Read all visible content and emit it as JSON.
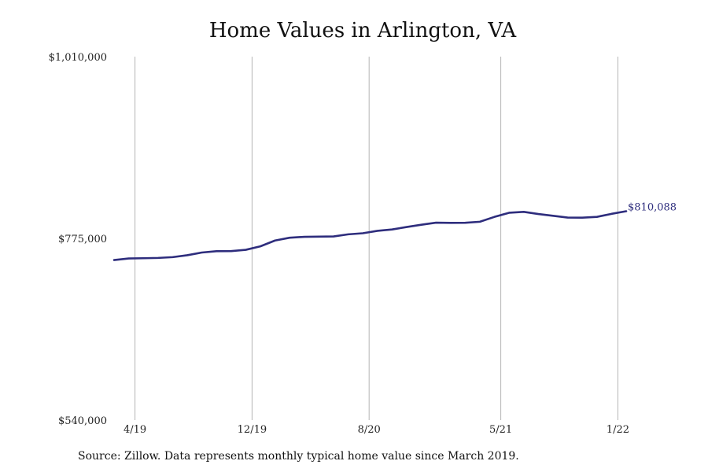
{
  "chart_data": {
    "type": "line",
    "title": "Home Values in Arlington, VA",
    "xlabel": "",
    "ylabel": "",
    "ylim": [
      540000,
      1010000
    ],
    "y_ticks": [
      "$1,010,000",
      "$775,000",
      "$540,000"
    ],
    "y_tick_values": [
      1010000,
      775000,
      540000
    ],
    "x_ticks": [
      "4/19",
      "12/19",
      "8/20",
      "5/21",
      "1/22"
    ],
    "x_tick_dates": [
      "2019-04",
      "2019-12",
      "2020-08",
      "2021-05",
      "2022-01"
    ],
    "grid": "vertical",
    "color": "#2e2d7d",
    "series": [
      {
        "x": [
          "2019-03",
          "2019-04",
          "2019-05",
          "2019-06",
          "2019-07",
          "2019-08",
          "2019-09",
          "2019-10",
          "2019-11",
          "2019-12",
          "2020-01",
          "2020-02",
          "2020-03",
          "2020-04",
          "2020-05",
          "2020-06",
          "2020-07",
          "2020-08",
          "2020-09",
          "2020-10",
          "2020-11",
          "2020-12",
          "2021-01",
          "2021-02",
          "2021-03",
          "2021-04",
          "2021-05",
          "2021-06",
          "2021-07",
          "2021-08",
          "2021-09",
          "2021-10",
          "2021-11",
          "2021-12",
          "2022-01",
          "2022-02",
          "2022-03"
        ],
        "values": [
          747000,
          749000,
          749300,
          749700,
          750700,
          753200,
          756700,
          758400,
          758500,
          760200,
          764700,
          772200,
          775800,
          777000,
          777200,
          777500,
          780200,
          781600,
          784700,
          786500,
          789700,
          792600,
          795300,
          795000,
          795200,
          796500,
          802800,
          808100,
          809300,
          806500,
          804200,
          801900,
          801800,
          802800,
          806700,
          810088,
          null
        ],
        "end_label": "$810,088"
      }
    ]
  },
  "footer": {
    "source": "Source: Zillow. Data represents monthly typical home value since March 2019."
  }
}
